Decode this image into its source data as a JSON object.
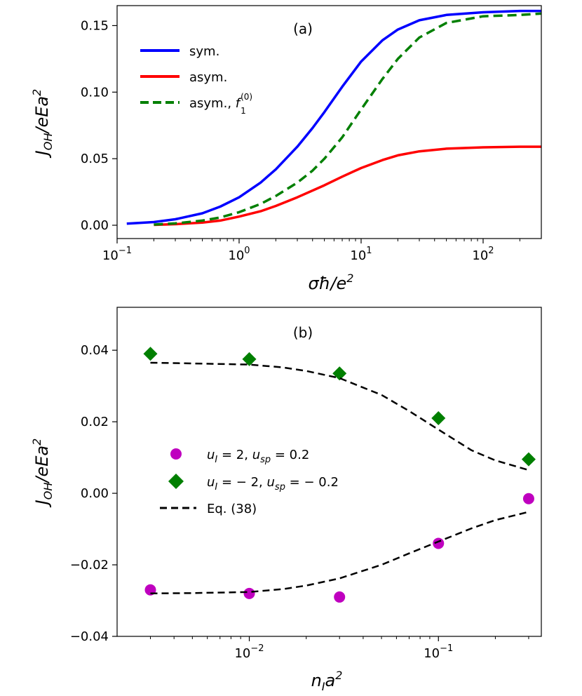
{
  "chart_data": [
    {
      "type": "line",
      "panel": "(a)",
      "xscale": "log",
      "xlim": [
        0.1,
        300
      ],
      "ylim": [
        -0.01,
        0.165
      ],
      "ylabel": "J_OH/eEa^2",
      "xlabel": "σħ/e^2",
      "x_ticks": [
        {
          "value": 0.1,
          "base": "10",
          "exp": "−1"
        },
        {
          "value": 1,
          "base": "10",
          "exp": "0"
        },
        {
          "value": 10,
          "base": "10",
          "exp": "1"
        },
        {
          "value": 100,
          "base": "10",
          "exp": "2"
        }
      ],
      "y_ticks": [
        {
          "value": 0.0,
          "label": "0.00"
        },
        {
          "value": 0.05,
          "label": "0.05"
        },
        {
          "value": 0.1,
          "label": "0.10"
        },
        {
          "value": 0.15,
          "label": "0.15"
        }
      ],
      "legend_position": "upper-left",
      "series": [
        {
          "name": "sym.",
          "legend": "sym.",
          "color": "#0000ff",
          "style": "solid",
          "x": [
            0.12,
            0.2,
            0.3,
            0.5,
            0.7,
            1,
            1.5,
            2,
            3,
            4,
            5,
            7,
            10,
            15,
            20,
            30,
            50,
            100,
            200,
            300
          ],
          "y": [
            0.0012,
            0.0024,
            0.0045,
            0.009,
            0.014,
            0.021,
            0.032,
            0.042,
            0.059,
            0.073,
            0.085,
            0.104,
            0.123,
            0.139,
            0.147,
            0.154,
            0.158,
            0.16,
            0.161,
            0.161
          ]
        },
        {
          "name": "asym.",
          "legend": "asym.",
          "color": "#ff0000",
          "style": "solid",
          "x": [
            0.2,
            0.3,
            0.5,
            0.7,
            1,
            1.5,
            2,
            3,
            5,
            7,
            10,
            15,
            20,
            30,
            50,
            100,
            200,
            300
          ],
          "y": [
            0.0003,
            0.0008,
            0.002,
            0.0035,
            0.0065,
            0.0105,
            0.0145,
            0.021,
            0.03,
            0.0365,
            0.043,
            0.049,
            0.0525,
            0.0555,
            0.0575,
            0.0585,
            0.059,
            0.059
          ]
        },
        {
          "name": "asym., f1(0)",
          "legend_prefix": "asym., ",
          "legend_f": "f",
          "legend_sup": "(0)",
          "legend_sub": "1",
          "color": "#007f00",
          "style": "dashed",
          "x": [
            0.2,
            0.3,
            0.5,
            0.7,
            1,
            1.5,
            2,
            3,
            4,
            5,
            7,
            10,
            15,
            20,
            30,
            50,
            100,
            200,
            300
          ],
          "y": [
            0.0005,
            0.0014,
            0.0035,
            0.0058,
            0.0098,
            0.016,
            0.022,
            0.032,
            0.041,
            0.05,
            0.066,
            0.087,
            0.11,
            0.125,
            0.141,
            0.152,
            0.157,
            0.158,
            0.159
          ]
        }
      ]
    },
    {
      "type": "scatter",
      "panel": "(b)",
      "xscale": "log",
      "xlim": [
        0.002,
        0.35
      ],
      "ylim": [
        -0.04,
        0.052
      ],
      "ylabel": "J_OH/eEa^2",
      "xlabel": "n_I a^2",
      "x_ticks": [
        {
          "value": 0.01,
          "base": "10",
          "exp": "−2"
        },
        {
          "value": 0.1,
          "base": "10",
          "exp": "−1"
        }
      ],
      "y_ticks": [
        {
          "value": -0.04,
          "label": "−0.04"
        },
        {
          "value": -0.02,
          "label": "−0.02"
        },
        {
          "value": 0.0,
          "label": "0.00"
        },
        {
          "value": 0.02,
          "label": "0.02"
        },
        {
          "value": 0.04,
          "label": "0.04"
        }
      ],
      "legend_position": "center-left",
      "series": [
        {
          "name": "u_I = 2, u_sp = 0.2",
          "legend": "u_I = 2, u_sp = 0.2",
          "marker": "circle",
          "color": "#bf00bf",
          "x": [
            0.003,
            0.01,
            0.03,
            0.1,
            0.3
          ],
          "y": [
            -0.027,
            -0.028,
            -0.029,
            -0.014,
            -0.0015
          ]
        },
        {
          "name": "u_I = −2, u_sp = −0.2",
          "legend": "u_I = −2, u_sp = −0.2",
          "marker": "diamond",
          "color": "#007f00",
          "x": [
            0.003,
            0.01,
            0.03,
            0.1,
            0.3
          ],
          "y": [
            0.039,
            0.0375,
            0.0335,
            0.021,
            0.0095
          ]
        },
        {
          "name": "Eq. (38) upper",
          "legend": "Eq. (38)",
          "style": "dashed",
          "color": "#000000",
          "x": [
            0.003,
            0.005,
            0.01,
            0.015,
            0.02,
            0.03,
            0.05,
            0.07,
            0.1,
            0.15,
            0.2,
            0.3
          ],
          "y": [
            0.0365,
            0.0363,
            0.036,
            0.0352,
            0.0342,
            0.0322,
            0.0275,
            0.023,
            0.0178,
            0.012,
            0.0092,
            0.0065
          ]
        },
        {
          "name": "Eq. (38) lower",
          "style": "dashed",
          "color": "#000000",
          "x": [
            0.003,
            0.005,
            0.01,
            0.015,
            0.02,
            0.03,
            0.05,
            0.07,
            0.1,
            0.15,
            0.2,
            0.3
          ],
          "y": [
            -0.028,
            -0.0279,
            -0.0276,
            -0.0268,
            -0.0258,
            -0.0238,
            -0.02,
            -0.0168,
            -0.0135,
            -0.0098,
            -0.0075,
            -0.0052
          ]
        }
      ]
    }
  ],
  "labels": {
    "panel_a": "(a)",
    "panel_b": "(b)",
    "ylabel_J": "J",
    "ylabel_sub": "OH",
    "ylabel_rest": "/eEa",
    "ylabel_sup": "2",
    "xlabel_a_main": "σħ/e",
    "xlabel_a_sup": "2",
    "xlabel_b_n": "n",
    "xlabel_b_sub": "I",
    "xlabel_b_a": "a",
    "xlabel_b_sup": "2",
    "legend_b_1_u": "u",
    "legend_b_1_sub_I": "I",
    "legend_b_1_mid": " = 2, ",
    "legend_b_1_sub_sp": "sp",
    "legend_b_1_end": " = 0.2",
    "legend_b_2_mid": " = − 2, ",
    "legend_b_2_end": " = − 0.2",
    "legend_b_3": "Eq. (38)"
  }
}
